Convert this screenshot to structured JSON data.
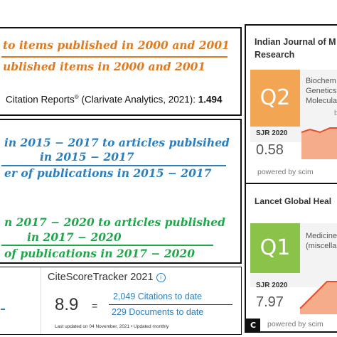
{
  "panel_a": {
    "line1": "to items published in 2000 and 2001",
    "line2": "ublished items in 2000 and 2001",
    "citation_label": "Citation Reports",
    "citation_sup": "®",
    "citation_source": " (Clarivate Analytics, 2021): ",
    "citation_value": "1.494",
    "color_orange": "#e07a1f"
  },
  "panel_b": {
    "blue_line1": "in 2015 − 2017 to articles publsihed",
    "blue_line2": "in 2015 − 2017",
    "blue_line3": "er of publications in 2015 − 2017",
    "green_line1": "n 2017 − 2020 to articles published",
    "green_line2": "in 2017 − 2020",
    "green_line3": "of publications in 2017 −  2020",
    "color_blue": "#2a7fc0",
    "color_green": "#1fa84a"
  },
  "citescore": {
    "title": "CiteScoreTracker 2021",
    "value": "8.9",
    "equals": "=",
    "citations": "2,049 Citations to date",
    "documents": "229 Documents to date",
    "updated": "Last updated on 04 November, 2021 • Updated monthly"
  },
  "panel_c": {
    "label": "C",
    "journal1": {
      "title_line1": "Indian Journal of M",
      "title_line2": "Research",
      "quartile": "Q2",
      "quartile_color": "#f2a654",
      "category_line1": "Biochem",
      "category_line2": "Genetics",
      "category_line3": "Molecula",
      "category_tail": "b",
      "sjr_label": "SJR 2020",
      "sjr_value": "0.58",
      "powered": "powered by scim"
    },
    "journal2": {
      "title": "Lancet Global Heal",
      "quartile": "Q1",
      "quartile_color": "#8bc34a",
      "category_line1": "Medicine",
      "category_line2": "(miscella",
      "sjr_label": "SJR 2020",
      "sjr_value": "7.97",
      "powered": "powered by scim"
    }
  }
}
